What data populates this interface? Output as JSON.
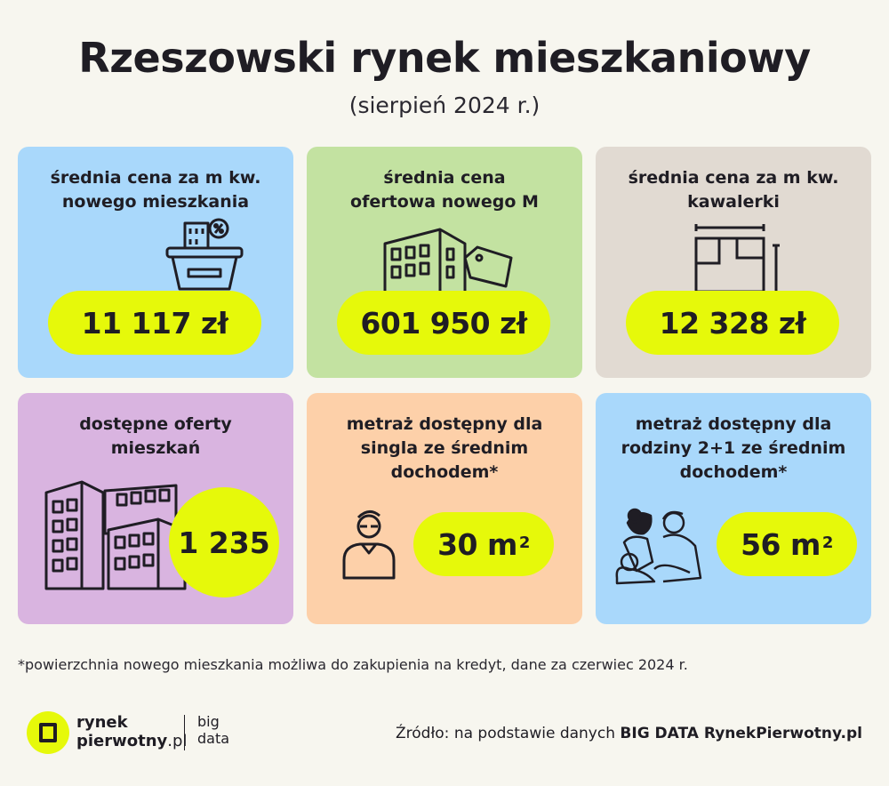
{
  "header": {
    "title": "Rzeszowski rynek mieszkaniowy",
    "subtitle": "(sierpień 2024 r.)"
  },
  "cards": [
    {
      "label_line1": "średnia cena za m kw.",
      "label_line2": "nowego mieszkania",
      "value": "11 117 zł",
      "icon": "basket-building-icon",
      "color": "#a9d8fb"
    },
    {
      "label_line1": "średnia cena",
      "label_line2": "ofertowa nowego M",
      "value": "601 950 zł",
      "icon": "building-price-tag-icon",
      "color": "#c3e2a1"
    },
    {
      "label_line1": "średnia cena za m kw.",
      "label_line2": "kawalerki",
      "value": "12 328 zł",
      "icon": "floor-plan-icon",
      "color": "#e1dad2"
    },
    {
      "label_line1": "dostępne oferty",
      "label_line2": "mieszkań",
      "value": "1 235",
      "icon": "buildings-icon",
      "color": "#d9b4e0"
    },
    {
      "label_line1": "metraż dostępny dla",
      "label_line2": "singla ze średnim",
      "label_line3": "dochodem*",
      "value": "30 m",
      "unit_sup": "2",
      "icon": "person-icon",
      "color": "#fdd0a9"
    },
    {
      "label_line1": "metraż dostępny dla",
      "label_line2": "rodziny 2+1 ze średnim",
      "label_line3": "dochodem*",
      "value": "56 m",
      "unit_sup": "2",
      "icon": "family-icon",
      "color": "#a9d8fb"
    }
  ],
  "footnote": "*powierzchnia nowego mieszkania możliwa do zakupienia na kredyt, dane za czerwiec 2024 r.",
  "footer": {
    "logo_line1": "rynek",
    "logo_line2": "pierwotny",
    "logo_suffix": ".pl",
    "partner_line1": "big",
    "partner_line2": "data",
    "source_prefix": "Źródło: na podstawie danych",
    "source_bold": "BIG DATA RynekPierwotny.pl"
  },
  "colors": {
    "accent": "#e6f90a",
    "background": "#f7f6ef",
    "text": "#1f1d24"
  }
}
